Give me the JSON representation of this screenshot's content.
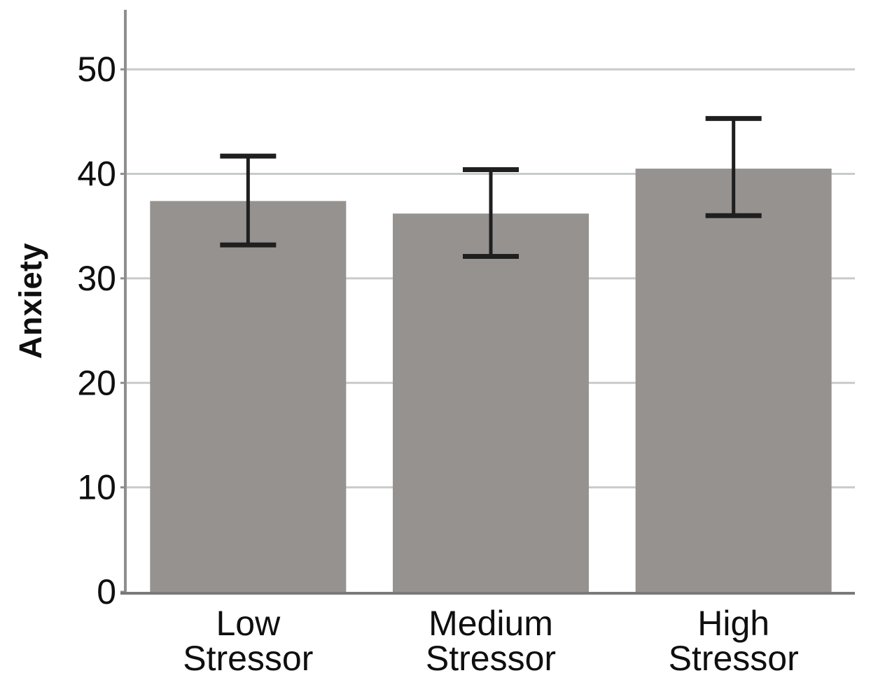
{
  "chart_data": {
    "type": "bar",
    "title": "",
    "xlabel": "",
    "ylabel": "Anxiety",
    "categories": [
      "Low Stressor",
      "Medium Stressor",
      "High Stressor"
    ],
    "category_lines": [
      [
        "Low",
        "Stressor"
      ],
      [
        "Medium",
        "Stressor"
      ],
      [
        "High",
        "Stressor"
      ]
    ],
    "values": [
      37.4,
      36.2,
      40.5
    ],
    "error_bars": {
      "upper": [
        41.7,
        40.4,
        45.3
      ],
      "lower": [
        33.2,
        32.1,
        36.0
      ]
    },
    "yticks": [
      0,
      10,
      20,
      30,
      40,
      50
    ],
    "ytick_labels": [
      "0",
      "10",
      "20",
      "30",
      "40",
      "50"
    ],
    "ylim": [
      0,
      55.7
    ],
    "grid": "horizontal-only",
    "legend": "none",
    "colors": {
      "bar_fill": "#969290",
      "error_bar": "#1f1f1f",
      "gridline": "#c8cbca",
      "y_axis_line": "#8e8e8e",
      "x_axis_line": "#7a7a7a",
      "tick": "#8e8e8e",
      "text": "#0f0f0f",
      "background": "#ffffff"
    }
  }
}
